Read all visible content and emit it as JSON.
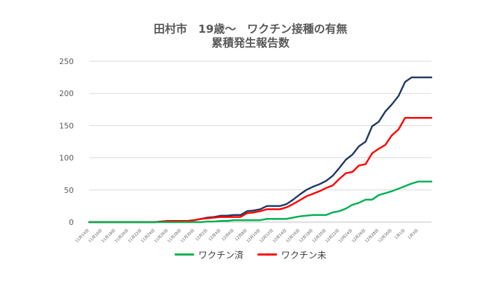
{
  "chart_data": {
    "type": "line",
    "title": "田村市　19歳～　ワクチン接種の有無",
    "subtitle": "累積発生報告数",
    "ylim": [
      0,
      250
    ],
    "yticks": [
      0,
      50,
      100,
      150,
      200,
      250
    ],
    "grid": "horizontal",
    "legend_position": "bottom",
    "x": [
      "11月14日",
      "11月15日",
      "11月16日",
      "11月17日",
      "11月18日",
      "11月19日",
      "11月20日",
      "11月21日",
      "11月22日",
      "11月23日",
      "11月24日",
      "11月25日",
      "11月26日",
      "11月27日",
      "11月28日",
      "11月29日",
      "11月30日",
      "12月1日",
      "12月2日",
      "12月3日",
      "12月4日",
      "12月5日",
      "12月6日",
      "12月7日",
      "12月8日",
      "12月9日",
      "12月10日",
      "12月11日",
      "12月12日",
      "12月13日",
      "12月14日",
      "12月15日",
      "12月16日",
      "12月17日",
      "12月18日",
      "12月19日",
      "12月20日",
      "12月21日",
      "12月22日",
      "12月23日",
      "12月24日",
      "12月25日",
      "12月26日",
      "12月27日",
      "12月28日",
      "12月29日",
      "12月30日",
      "12月31日",
      "1月1日",
      "1月2日",
      "1月3日",
      "1月4日",
      "1月5日"
    ],
    "xtick_labels": [
      "11月14日",
      "",
      "11月16日",
      "",
      "11月18日",
      "",
      "11月20日",
      "",
      "11月22日",
      "",
      "11月24日",
      "",
      "11月26日",
      "",
      "11月28日",
      "",
      "11月30日",
      "",
      "12月2日",
      "",
      "12月4日",
      "",
      "12月6日",
      "",
      "12月8日",
      "",
      "12月10日",
      "",
      "12月12日",
      "",
      "12月14日",
      "",
      "12月16日",
      "",
      "12月18日",
      "",
      "12月20日",
      "",
      "12月22日",
      "",
      "12月24日",
      "",
      "12月26日",
      "",
      "12月28日",
      "",
      "12月30日",
      "",
      "1月1日",
      "",
      "1月3日",
      "",
      ""
    ],
    "series": [
      {
        "name": "",
        "color": "#1f3864",
        "values": [
          0,
          0,
          0,
          0,
          0,
          0,
          0,
          0,
          0,
          0,
          0,
          1,
          2,
          2,
          2,
          2,
          3,
          5,
          7,
          8,
          10,
          10,
          11,
          11,
          17,
          18,
          20,
          25,
          25,
          25,
          28,
          35,
          43,
          50,
          55,
          59,
          64,
          72,
          84,
          97,
          105,
          118,
          125,
          149,
          156,
          172,
          183,
          196,
          218,
          225,
          225,
          225,
          225
        ]
      },
      {
        "name": "ワクチン済",
        "color": "#00b050",
        "values": [
          0,
          0,
          0,
          0,
          0,
          0,
          0,
          0,
          0,
          0,
          0,
          0,
          0,
          0,
          0,
          0,
          0,
          0,
          1,
          1,
          2,
          2,
          3,
          3,
          3,
          3,
          3,
          5,
          5,
          5,
          5,
          7,
          9,
          10,
          11,
          11,
          11,
          15,
          17,
          21,
          27,
          30,
          35,
          35,
          42,
          45,
          48,
          52,
          56,
          60,
          63,
          63,
          63
        ]
      },
      {
        "name": "ワクチン未",
        "color": "#ff0000",
        "values": [
          0,
          0,
          0,
          0,
          0,
          0,
          0,
          0,
          0,
          0,
          0,
          1,
          2,
          2,
          2,
          2,
          3,
          5,
          6,
          7,
          8,
          8,
          8,
          8,
          14,
          15,
          17,
          20,
          20,
          20,
          23,
          28,
          34,
          40,
          44,
          48,
          53,
          57,
          67,
          76,
          78,
          88,
          90,
          107,
          114,
          120,
          135,
          144,
          162,
          162,
          162,
          162,
          162
        ]
      }
    ]
  },
  "legend": {
    "vaccinated_label": "ワクチン済",
    "unvaccinated_label": "ワクチン未"
  }
}
